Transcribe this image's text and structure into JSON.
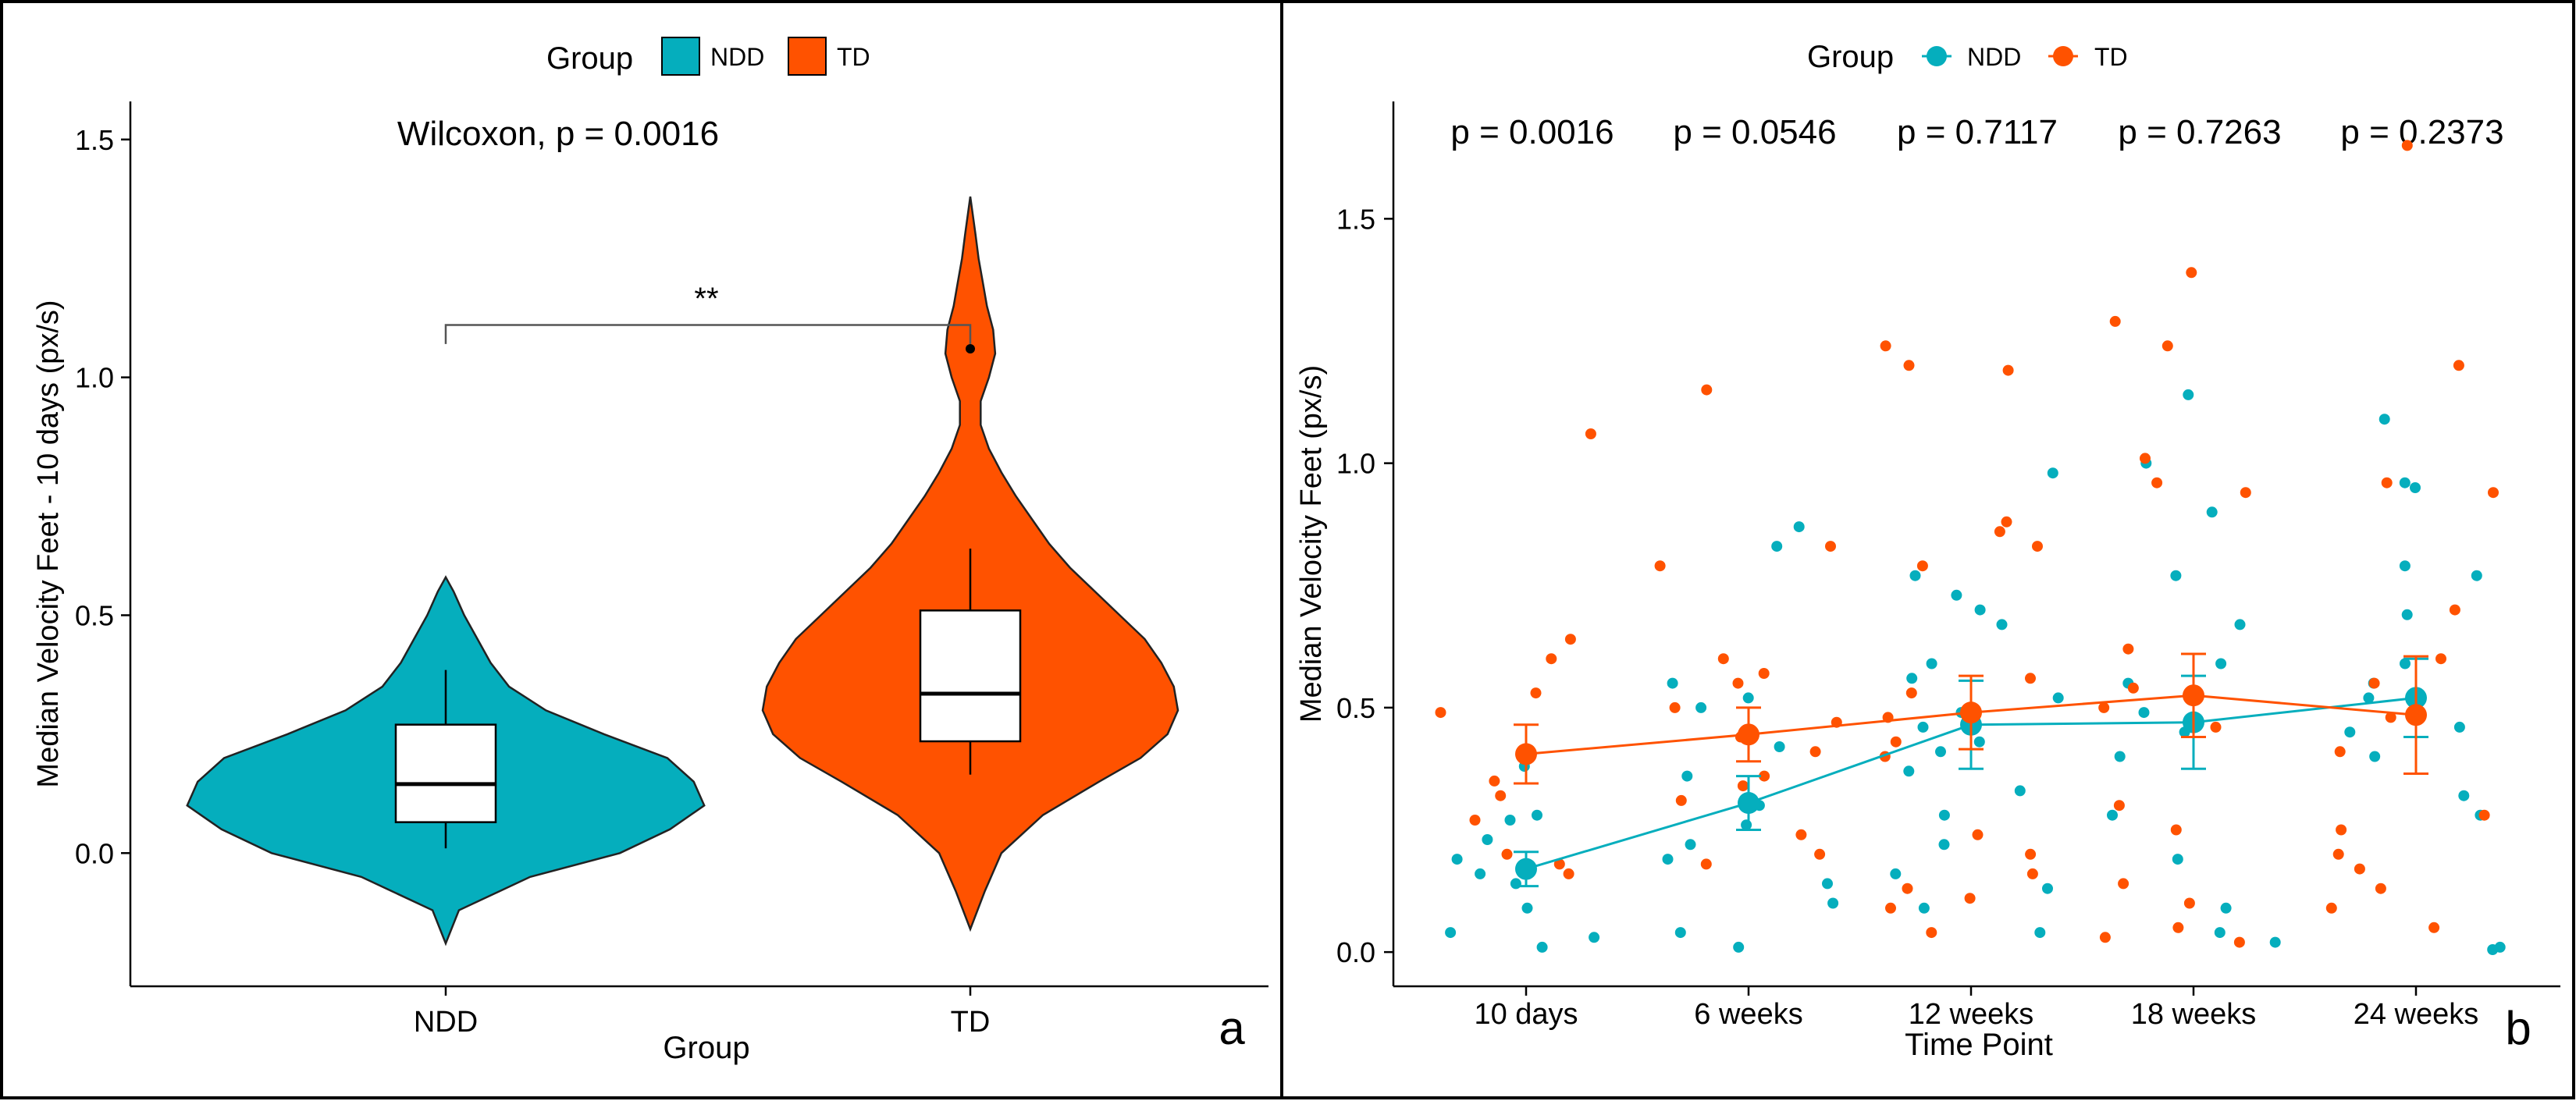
{
  "colors": {
    "ndd": "#05AEBD",
    "td": "#FF5200",
    "axis": "#000000",
    "bracket": "#555555"
  },
  "chart_data": [
    {
      "type": "violin",
      "panel_label": "a",
      "legend_title": "Group",
      "legend": [
        "NDD",
        "TD"
      ],
      "annotation": "Wilcoxon, p = 0.0016",
      "significance": "**",
      "xlabel": "Group",
      "ylabel": "Median Velocity Feet - 10 days (px/s)",
      "categories": [
        "NDD",
        "TD"
      ],
      "yticks": [
        "0.0",
        "0.5",
        "1.0",
        "1.5"
      ],
      "ylim": [
        -0.28,
        1.58
      ],
      "boxes": [
        {
          "group": "NDD",
          "min": 0.01,
          "q1": 0.065,
          "median": 0.145,
          "q3": 0.27,
          "max": 0.385
        },
        {
          "group": "TD",
          "min": 0.165,
          "q1": 0.235,
          "median": 0.335,
          "q3": 0.51,
          "max": 0.64,
          "outliers": [
            1.06
          ]
        }
      ],
      "violins": [
        {
          "group": "NDD",
          "y": [
            -0.19,
            -0.12,
            -0.05,
            0.0,
            0.05,
            0.1,
            0.15,
            0.2,
            0.25,
            0.3,
            0.35,
            0.4,
            0.45,
            0.5,
            0.55,
            0.58
          ],
          "width": [
            0.0,
            0.05,
            0.32,
            0.66,
            0.85,
            0.98,
            0.94,
            0.84,
            0.6,
            0.38,
            0.24,
            0.17,
            0.12,
            0.07,
            0.03,
            0.0
          ]
        },
        {
          "group": "TD",
          "y": [
            -0.16,
            -0.08,
            0.0,
            0.08,
            0.15,
            0.2,
            0.25,
            0.3,
            0.35,
            0.4,
            0.45,
            0.5,
            0.55,
            0.6,
            0.65,
            0.7,
            0.75,
            0.8,
            0.85,
            0.9,
            0.95,
            1.0,
            1.05,
            1.1,
            1.15,
            1.2,
            1.25,
            1.3,
            1.38
          ],
          "width": [
            0.0,
            0.07,
            0.15,
            0.35,
            0.62,
            0.82,
            0.95,
            1.0,
            0.98,
            0.92,
            0.84,
            0.72,
            0.6,
            0.48,
            0.38,
            0.3,
            0.22,
            0.15,
            0.09,
            0.05,
            0.05,
            0.09,
            0.12,
            0.11,
            0.08,
            0.06,
            0.04,
            0.025,
            0.0
          ]
        }
      ]
    },
    {
      "type": "scatter",
      "panel_label": "b",
      "legend_title": "Group",
      "legend": [
        "NDD",
        "TD"
      ],
      "xlabel": "Time Point",
      "ylabel": "Median Velocity Feet (px/s)",
      "categories": [
        "10 days",
        "6 weeks",
        "12 weeks",
        "18 weeks",
        "24 weeks"
      ],
      "pvalues": [
        "p = 0.0016",
        "p = 0.0546",
        "p = 0.7117",
        "p = 0.7263",
        "p = 0.2373"
      ],
      "yticks": [
        "0.0",
        "0.5",
        "1.0",
        "1.5"
      ],
      "ylim": [
        -0.07,
        1.74
      ],
      "series": [
        {
          "name": "NDD",
          "means": [
            0.17,
            0.305,
            0.465,
            0.47,
            0.52
          ],
          "se": [
            0.035,
            0.055,
            0.09,
            0.095,
            0.08
          ],
          "points": [
            [
              0.38,
              0.28,
              0.19,
              0.16,
              0.14,
              0.09,
              0.04,
              0.03,
              0.01,
              0.27,
              0.23
            ],
            [
              0.87,
              0.83,
              0.55,
              0.52,
              0.5,
              0.42,
              0.36,
              0.3,
              0.26,
              0.22,
              0.19,
              0.14,
              0.1,
              0.04,
              0.01
            ],
            [
              0.98,
              0.77,
              0.73,
              0.7,
              0.67,
              0.59,
              0.56,
              0.52,
              0.49,
              0.46,
              0.43,
              0.41,
              0.37,
              0.33,
              0.28,
              0.22,
              0.16,
              0.13,
              0.09,
              0.04
            ],
            [
              1.14,
              1.0,
              0.9,
              0.77,
              0.67,
              0.59,
              0.55,
              0.49,
              0.45,
              0.4,
              0.28,
              0.19,
              0.09,
              0.04,
              0.02
            ],
            [
              1.09,
              0.96,
              0.95,
              0.79,
              0.77,
              0.69,
              0.59,
              0.55,
              0.52,
              0.46,
              0.45,
              0.4,
              0.32,
              0.28,
              0.01,
              0.005
            ]
          ]
        },
        {
          "name": "TD",
          "means": [
            0.405,
            0.445,
            0.49,
            0.525,
            0.485
          ],
          "se": [
            0.06,
            0.055,
            0.075,
            0.085,
            0.12
          ],
          "points": [
            [
              1.06,
              0.64,
              0.6,
              0.53,
              0.49,
              0.35,
              0.32,
              0.27,
              0.2,
              0.18,
              0.16
            ],
            [
              1.15,
              0.83,
              0.79,
              0.6,
              0.57,
              0.55,
              0.5,
              0.47,
              0.44,
              0.41,
              0.36,
              0.34,
              0.31,
              0.24,
              0.2,
              0.18
            ],
            [
              1.24,
              1.2,
              1.19,
              0.88,
              0.86,
              0.83,
              0.79,
              0.56,
              0.53,
              0.48,
              0.43,
              0.4,
              0.24,
              0.2,
              0.16,
              0.13,
              0.11,
              0.09,
              0.04
            ],
            [
              1.39,
              1.29,
              1.24,
              1.01,
              0.96,
              0.94,
              0.62,
              0.54,
              0.5,
              0.46,
              0.3,
              0.25,
              0.14,
              0.1,
              0.05,
              0.03,
              0.02
            ],
            [
              1.65,
              1.2,
              0.96,
              0.94,
              0.7,
              0.6,
              0.55,
              0.48,
              0.41,
              0.28,
              0.25,
              0.2,
              0.17,
              0.13,
              0.09,
              0.05
            ]
          ]
        }
      ]
    }
  ]
}
